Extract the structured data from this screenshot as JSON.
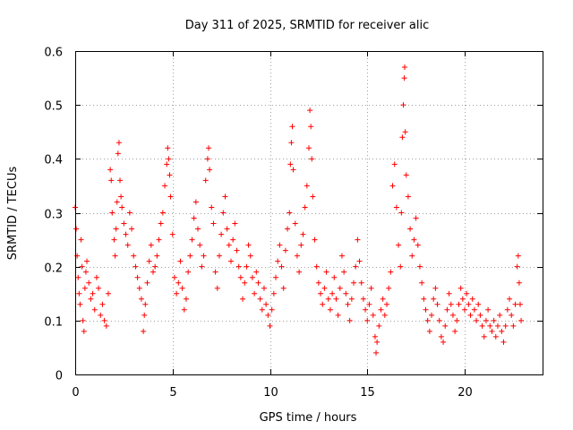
{
  "chart_data": {
    "type": "scatter",
    "title": "Day 311 of 2025, SRMTID for receiver alic",
    "xlabel": "GPS time / hours",
    "ylabel": "SRMTID / TECUs",
    "xlim": [
      0,
      24
    ],
    "ylim": [
      0,
      0.6
    ],
    "xticks": [
      0,
      5,
      10,
      15,
      20
    ],
    "xtick_labels": [
      "0",
      "5",
      "10",
      "15",
      "20"
    ],
    "yticks": [
      0,
      0.1,
      0.2,
      0.3,
      0.4,
      0.5,
      0.6
    ],
    "ytick_labels": [
      "0",
      "0.1",
      "0.2",
      "0.3",
      "0.4",
      "0.5",
      "0.6"
    ],
    "grid": true,
    "marker": "+",
    "color": "#ff0000",
    "series": [
      {
        "name": "SRMTID",
        "points": [
          [
            0.0,
            0.31
          ],
          [
            0.05,
            0.27
          ],
          [
            0.1,
            0.22
          ],
          [
            0.15,
            0.18
          ],
          [
            0.2,
            0.15
          ],
          [
            0.25,
            0.13
          ],
          [
            0.3,
            0.25
          ],
          [
            0.35,
            0.2
          ],
          [
            0.4,
            0.1
          ],
          [
            0.45,
            0.08
          ],
          [
            0.5,
            0.16
          ],
          [
            0.55,
            0.19
          ],
          [
            0.6,
            0.21
          ],
          [
            0.7,
            0.17
          ],
          [
            0.8,
            0.14
          ],
          [
            0.9,
            0.15
          ],
          [
            1.0,
            0.12
          ],
          [
            1.1,
            0.18
          ],
          [
            1.2,
            0.16
          ],
          [
            1.3,
            0.11
          ],
          [
            1.4,
            0.13
          ],
          [
            1.5,
            0.1
          ],
          [
            1.6,
            0.09
          ],
          [
            1.7,
            0.15
          ],
          [
            1.8,
            0.38
          ],
          [
            1.85,
            0.36
          ],
          [
            1.9,
            0.3
          ],
          [
            2.0,
            0.25
          ],
          [
            2.05,
            0.22
          ],
          [
            2.1,
            0.27
          ],
          [
            2.15,
            0.32
          ],
          [
            2.2,
            0.41
          ],
          [
            2.25,
            0.43
          ],
          [
            2.3,
            0.36
          ],
          [
            2.35,
            0.33
          ],
          [
            2.4,
            0.31
          ],
          [
            2.5,
            0.28
          ],
          [
            2.6,
            0.26
          ],
          [
            2.7,
            0.24
          ],
          [
            2.8,
            0.3
          ],
          [
            2.9,
            0.27
          ],
          [
            3.0,
            0.22
          ],
          [
            3.1,
            0.2
          ],
          [
            3.2,
            0.18
          ],
          [
            3.3,
            0.16
          ],
          [
            3.4,
            0.14
          ],
          [
            3.5,
            0.08
          ],
          [
            3.55,
            0.11
          ],
          [
            3.6,
            0.13
          ],
          [
            3.7,
            0.17
          ],
          [
            3.8,
            0.21
          ],
          [
            3.9,
            0.24
          ],
          [
            4.0,
            0.19
          ],
          [
            4.1,
            0.2
          ],
          [
            4.2,
            0.22
          ],
          [
            4.3,
            0.25
          ],
          [
            4.4,
            0.28
          ],
          [
            4.5,
            0.3
          ],
          [
            4.6,
            0.35
          ],
          [
            4.7,
            0.39
          ],
          [
            4.75,
            0.42
          ],
          [
            4.8,
            0.4
          ],
          [
            4.85,
            0.37
          ],
          [
            4.9,
            0.33
          ],
          [
            5.0,
            0.26
          ],
          [
            5.1,
            0.18
          ],
          [
            5.2,
            0.15
          ],
          [
            5.3,
            0.17
          ],
          [
            5.4,
            0.21
          ],
          [
            5.5,
            0.16
          ],
          [
            5.6,
            0.12
          ],
          [
            5.7,
            0.14
          ],
          [
            5.8,
            0.19
          ],
          [
            5.9,
            0.22
          ],
          [
            6.0,
            0.25
          ],
          [
            6.1,
            0.29
          ],
          [
            6.2,
            0.32
          ],
          [
            6.3,
            0.27
          ],
          [
            6.4,
            0.24
          ],
          [
            6.5,
            0.2
          ],
          [
            6.6,
            0.22
          ],
          [
            6.7,
            0.36
          ],
          [
            6.8,
            0.4
          ],
          [
            6.85,
            0.42
          ],
          [
            6.9,
            0.38
          ],
          [
            7.0,
            0.31
          ],
          [
            7.1,
            0.28
          ],
          [
            7.2,
            0.19
          ],
          [
            7.3,
            0.16
          ],
          [
            7.4,
            0.22
          ],
          [
            7.5,
            0.26
          ],
          [
            7.6,
            0.3
          ],
          [
            7.7,
            0.33
          ],
          [
            7.8,
            0.27
          ],
          [
            7.9,
            0.24
          ],
          [
            8.0,
            0.21
          ],
          [
            8.1,
            0.25
          ],
          [
            8.2,
            0.28
          ],
          [
            8.3,
            0.23
          ],
          [
            8.4,
            0.2
          ],
          [
            8.5,
            0.18
          ],
          [
            8.6,
            0.14
          ],
          [
            8.7,
            0.17
          ],
          [
            8.8,
            0.2
          ],
          [
            8.9,
            0.24
          ],
          [
            9.0,
            0.22
          ],
          [
            9.1,
            0.18
          ],
          [
            9.2,
            0.15
          ],
          [
            9.3,
            0.19
          ],
          [
            9.4,
            0.17
          ],
          [
            9.5,
            0.14
          ],
          [
            9.6,
            0.12
          ],
          [
            9.7,
            0.16
          ],
          [
            9.8,
            0.13
          ],
          [
            9.9,
            0.11
          ],
          [
            10.0,
            0.09
          ],
          [
            10.1,
            0.12
          ],
          [
            10.2,
            0.15
          ],
          [
            10.3,
            0.18
          ],
          [
            10.4,
            0.21
          ],
          [
            10.5,
            0.24
          ],
          [
            10.6,
            0.2
          ],
          [
            10.7,
            0.16
          ],
          [
            10.8,
            0.23
          ],
          [
            10.9,
            0.27
          ],
          [
            11.0,
            0.3
          ],
          [
            11.05,
            0.39
          ],
          [
            11.1,
            0.43
          ],
          [
            11.15,
            0.46
          ],
          [
            11.2,
            0.38
          ],
          [
            11.3,
            0.28
          ],
          [
            11.4,
            0.22
          ],
          [
            11.5,
            0.19
          ],
          [
            11.6,
            0.24
          ],
          [
            11.7,
            0.26
          ],
          [
            11.8,
            0.31
          ],
          [
            11.9,
            0.35
          ],
          [
            12.0,
            0.42
          ],
          [
            12.05,
            0.49
          ],
          [
            12.1,
            0.46
          ],
          [
            12.15,
            0.4
          ],
          [
            12.2,
            0.33
          ],
          [
            12.3,
            0.25
          ],
          [
            12.4,
            0.2
          ],
          [
            12.5,
            0.17
          ],
          [
            12.6,
            0.15
          ],
          [
            12.7,
            0.13
          ],
          [
            12.8,
            0.16
          ],
          [
            12.9,
            0.19
          ],
          [
            13.0,
            0.14
          ],
          [
            13.1,
            0.12
          ],
          [
            13.2,
            0.15
          ],
          [
            13.3,
            0.18
          ],
          [
            13.4,
            0.14
          ],
          [
            13.5,
            0.11
          ],
          [
            13.6,
            0.16
          ],
          [
            13.7,
            0.22
          ],
          [
            13.8,
            0.19
          ],
          [
            13.9,
            0.15
          ],
          [
            14.0,
            0.13
          ],
          [
            14.1,
            0.1
          ],
          [
            14.2,
            0.14
          ],
          [
            14.3,
            0.17
          ],
          [
            14.4,
            0.2
          ],
          [
            14.5,
            0.25
          ],
          [
            14.6,
            0.21
          ],
          [
            14.7,
            0.17
          ],
          [
            14.8,
            0.14
          ],
          [
            14.9,
            0.12
          ],
          [
            15.0,
            0.1
          ],
          [
            15.1,
            0.13
          ],
          [
            15.2,
            0.16
          ],
          [
            15.3,
            0.11
          ],
          [
            15.4,
            0.07
          ],
          [
            15.45,
            0.04
          ],
          [
            15.5,
            0.06
          ],
          [
            15.6,
            0.09
          ],
          [
            15.7,
            0.12
          ],
          [
            15.8,
            0.14
          ],
          [
            15.9,
            0.11
          ],
          [
            16.0,
            0.13
          ],
          [
            16.1,
            0.16
          ],
          [
            16.2,
            0.19
          ],
          [
            16.3,
            0.35
          ],
          [
            16.4,
            0.39
          ],
          [
            16.5,
            0.31
          ],
          [
            16.6,
            0.24
          ],
          [
            16.7,
            0.2
          ],
          [
            16.75,
            0.3
          ],
          [
            16.8,
            0.44
          ],
          [
            16.85,
            0.5
          ],
          [
            16.9,
            0.55
          ],
          [
            16.92,
            0.57
          ],
          [
            16.95,
            0.45
          ],
          [
            17.0,
            0.37
          ],
          [
            17.1,
            0.33
          ],
          [
            17.2,
            0.27
          ],
          [
            17.3,
            0.22
          ],
          [
            17.4,
            0.25
          ],
          [
            17.5,
            0.29
          ],
          [
            17.6,
            0.24
          ],
          [
            17.7,
            0.2
          ],
          [
            17.8,
            0.17
          ],
          [
            17.9,
            0.14
          ],
          [
            18.0,
            0.12
          ],
          [
            18.1,
            0.1
          ],
          [
            18.2,
            0.08
          ],
          [
            18.3,
            0.11
          ],
          [
            18.4,
            0.14
          ],
          [
            18.5,
            0.16
          ],
          [
            18.6,
            0.13
          ],
          [
            18.7,
            0.1
          ],
          [
            18.8,
            0.07
          ],
          [
            18.9,
            0.06
          ],
          [
            19.0,
            0.09
          ],
          [
            19.1,
            0.12
          ],
          [
            19.2,
            0.15
          ],
          [
            19.3,
            0.13
          ],
          [
            19.4,
            0.11
          ],
          [
            19.5,
            0.08
          ],
          [
            19.6,
            0.1
          ],
          [
            19.7,
            0.13
          ],
          [
            19.8,
            0.16
          ],
          [
            19.9,
            0.14
          ],
          [
            20.0,
            0.12
          ],
          [
            20.1,
            0.15
          ],
          [
            20.2,
            0.13
          ],
          [
            20.3,
            0.11
          ],
          [
            20.4,
            0.14
          ],
          [
            20.5,
            0.12
          ],
          [
            20.6,
            0.1
          ],
          [
            20.7,
            0.13
          ],
          [
            20.8,
            0.11
          ],
          [
            20.9,
            0.09
          ],
          [
            21.0,
            0.07
          ],
          [
            21.1,
            0.1
          ],
          [
            21.2,
            0.12
          ],
          [
            21.3,
            0.09
          ],
          [
            21.4,
            0.08
          ],
          [
            21.5,
            0.1
          ],
          [
            21.6,
            0.07
          ],
          [
            21.7,
            0.09
          ],
          [
            21.8,
            0.11
          ],
          [
            21.9,
            0.08
          ],
          [
            22.0,
            0.06
          ],
          [
            22.1,
            0.09
          ],
          [
            22.2,
            0.12
          ],
          [
            22.3,
            0.14
          ],
          [
            22.4,
            0.11
          ],
          [
            22.5,
            0.09
          ],
          [
            22.6,
            0.13
          ],
          [
            22.7,
            0.2
          ],
          [
            22.75,
            0.22
          ],
          [
            22.8,
            0.17
          ],
          [
            22.85,
            0.13
          ],
          [
            22.9,
            0.1
          ]
        ]
      }
    ]
  }
}
